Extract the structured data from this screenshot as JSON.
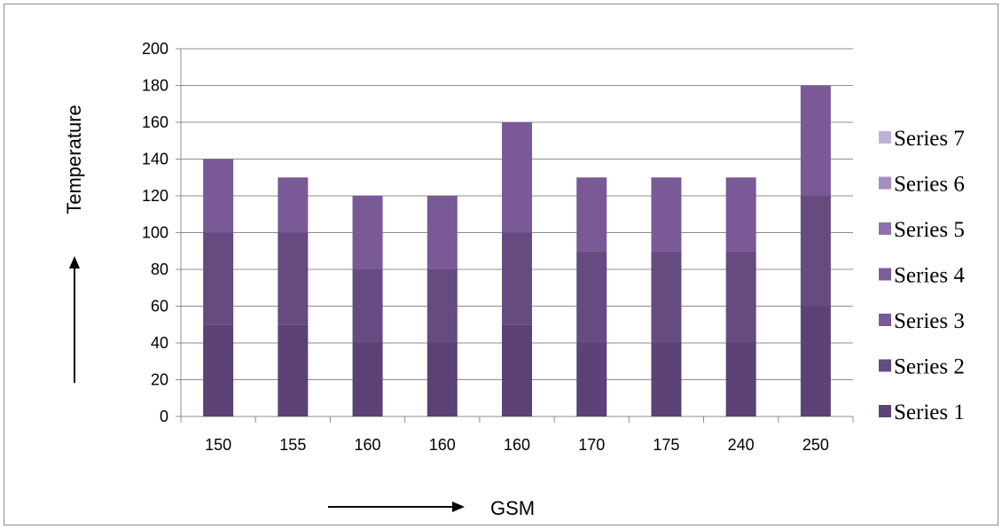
{
  "chart_data": {
    "type": "bar",
    "stacked": true,
    "categories": [
      "150",
      "155",
      "160",
      "160",
      "160",
      "170",
      "175",
      "240",
      "250"
    ],
    "series": [
      {
        "name": "Series 1",
        "values": [
          50,
          50,
          40,
          40,
          50,
          40,
          40,
          40,
          60
        ]
      },
      {
        "name": "Series 2",
        "values": [
          50,
          50,
          40,
          40,
          50,
          50,
          50,
          50,
          60
        ]
      },
      {
        "name": "Series 3",
        "values": [
          40,
          30,
          40,
          40,
          60,
          40,
          40,
          40,
          60
        ]
      },
      {
        "name": "Series 4",
        "values": [
          0,
          0,
          0,
          0,
          0,
          0,
          0,
          0,
          0
        ]
      },
      {
        "name": "Series 5",
        "values": [
          0,
          0,
          0,
          0,
          0,
          0,
          0,
          0,
          0
        ]
      },
      {
        "name": "Series 6",
        "values": [
          0,
          0,
          0,
          0,
          0,
          0,
          0,
          0,
          0
        ]
      },
      {
        "name": "Series 7",
        "values": [
          0,
          0,
          0,
          0,
          0,
          0,
          0,
          0,
          0
        ]
      }
    ],
    "colors": [
      "#5b4175",
      "#654b80",
      "#7a5997",
      "#7c5e9c",
      "#8f72ad",
      "#a48dc1",
      "#bfb0d6"
    ],
    "xlabel": "GSM",
    "ylabel": "Temperature",
    "ylim": [
      0,
      200
    ],
    "yticks": [
      0,
      20,
      40,
      60,
      80,
      100,
      120,
      140,
      160,
      180,
      200
    ],
    "grid": true,
    "legend_position": "right",
    "axis_arrows": true
  }
}
